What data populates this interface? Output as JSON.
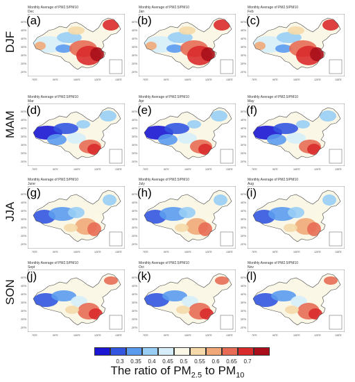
{
  "seasons": [
    "DJF",
    "MAM",
    "JJA",
    "SON"
  ],
  "panel_title": "Monthly Average of PM2.5/PM10",
  "panels": [
    {
      "letter": "(a)",
      "month": "Dec",
      "season": "DJF"
    },
    {
      "letter": "(b)",
      "month": "Jan",
      "season": "DJF"
    },
    {
      "letter": "(c)",
      "month": "Feb",
      "season": "DJF"
    },
    {
      "letter": "(d)",
      "month": "Mar",
      "season": "MAM"
    },
    {
      "letter": "(e)",
      "month": "Apr",
      "season": "MAM"
    },
    {
      "letter": "(f)",
      "month": "May",
      "season": "MAM"
    },
    {
      "letter": "(g)",
      "month": "June",
      "season": "JJA"
    },
    {
      "letter": "(h)",
      "month": "July",
      "season": "JJA"
    },
    {
      "letter": "(i)",
      "month": "Aug",
      "season": "JJA"
    },
    {
      "letter": "(j)",
      "month": "Sept",
      "season": "SON"
    },
    {
      "letter": "(k)",
      "month": "Oct",
      "season": "SON"
    },
    {
      "letter": "(l)",
      "month": "Nov",
      "season": "SON"
    }
  ],
  "lat_labels": [
    "50°N",
    "45°N",
    "40°N",
    "35°N",
    "30°N",
    "25°N",
    "20°N"
  ],
  "lon_labels": [
    "75°E",
    "90°E",
    "105°E",
    "120°E",
    "135°E"
  ],
  "colorbar": {
    "colors": [
      "#1a16d4",
      "#3355e0",
      "#5b9bef",
      "#98cdf5",
      "#d6eefa",
      "#fbf7e6",
      "#f5d9a8",
      "#f0a878",
      "#e76b55",
      "#d92b2b",
      "#a80f1a"
    ],
    "ticks": [
      "0.3",
      "0.35",
      "0.4",
      "0.45",
      "0.5",
      "0.55",
      "0.6",
      "0.65",
      "0.7"
    ],
    "label_main": "The ratio of PM",
    "label_sub1": "2.5",
    "label_mid": " to PM",
    "label_sub2": "10"
  }
}
